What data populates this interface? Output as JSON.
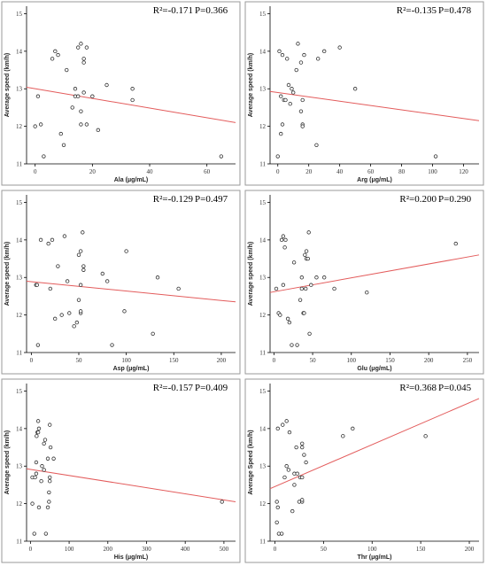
{
  "chart_data": [
    {
      "type": "scatter",
      "xlabel": "Ala (μg/mL)",
      "ylabel": "Average speed (km/h)",
      "stat_r2": "R²=-0.171",
      "stat_p": "P=0.366",
      "xlim": [
        -3,
        70
      ],
      "ylim": [
        11,
        15.2
      ],
      "xticks": [
        0,
        20,
        40,
        60
      ],
      "yticks": [
        11,
        12,
        13,
        14,
        15
      ],
      "points": [
        [
          0,
          12
        ],
        [
          1,
          12.8
        ],
        [
          2,
          12.05
        ],
        [
          3,
          11.2
        ],
        [
          6,
          13.8
        ],
        [
          7,
          14
        ],
        [
          8,
          13.9
        ],
        [
          9,
          11.8
        ],
        [
          10,
          11.5
        ],
        [
          11,
          13.5
        ],
        [
          13,
          12.5
        ],
        [
          14,
          12.8
        ],
        [
          14,
          13
        ],
        [
          15,
          14.1
        ],
        [
          15,
          12.8
        ],
        [
          16,
          12.05
        ],
        [
          16,
          12.4
        ],
        [
          16,
          14.2
        ],
        [
          17,
          13.7
        ],
        [
          17,
          12.9
        ],
        [
          17,
          13.8
        ],
        [
          18,
          14.1
        ],
        [
          18,
          12.05
        ],
        [
          20,
          12.8
        ],
        [
          22,
          11.9
        ],
        [
          25,
          13.1
        ],
        [
          34,
          12.7
        ],
        [
          34,
          13
        ],
        [
          65,
          11.2
        ]
      ],
      "fit": [
        [
          -3,
          13.04
        ],
        [
          70,
          12.1
        ]
      ],
      "grid": false
    },
    {
      "type": "scatter",
      "xlabel": "Arg (μg/mL)",
      "ylabel": "Average speed (km/h)",
      "stat_r2": "R²=-0.135",
      "stat_p": "P=0.478",
      "xlim": [
        -5,
        130
      ],
      "ylim": [
        11,
        15.2
      ],
      "xticks": [
        0,
        20,
        40,
        60,
        80,
        100,
        120
      ],
      "yticks": [
        11,
        12,
        13,
        14,
        15
      ],
      "points": [
        [
          0,
          11.2
        ],
        [
          1,
          14
        ],
        [
          2,
          11.8
        ],
        [
          2,
          12.8
        ],
        [
          3,
          13.9
        ],
        [
          3,
          12.05
        ],
        [
          4,
          12.7
        ],
        [
          5,
          12.7
        ],
        [
          6,
          13.8
        ],
        [
          7,
          13.1
        ],
        [
          8,
          12.6
        ],
        [
          9,
          13
        ],
        [
          10,
          12.9
        ],
        [
          12,
          13.5
        ],
        [
          13,
          14.2
        ],
        [
          15,
          13.7
        ],
        [
          15,
          12.4
        ],
        [
          16,
          12.05
        ],
        [
          16,
          12
        ],
        [
          16,
          12.7
        ],
        [
          17,
          13.9
        ],
        [
          25,
          11.5
        ],
        [
          26,
          13.8
        ],
        [
          30,
          14
        ],
        [
          40,
          14.1
        ],
        [
          50,
          13
        ],
        [
          102,
          11.2
        ]
      ],
      "fit": [
        [
          -5,
          12.93
        ],
        [
          130,
          12.15
        ]
      ],
      "grid": false
    },
    {
      "type": "scatter",
      "xlabel": "Asp (μg/mL)",
      "ylabel": "Average speed (km/h)",
      "stat_r2": "R²=-0.129",
      "stat_p": "P=0.497",
      "xlim": [
        -5,
        215
      ],
      "ylim": [
        11,
        15.2
      ],
      "xticks": [
        0,
        50,
        100,
        150,
        200
      ],
      "yticks": [
        11,
        12,
        13,
        14,
        15
      ],
      "points": [
        [
          5,
          12.8
        ],
        [
          6,
          12.8
        ],
        [
          7,
          11.2
        ],
        [
          10,
          14
        ],
        [
          18,
          13.9
        ],
        [
          20,
          12.7
        ],
        [
          22,
          14
        ],
        [
          25,
          11.9
        ],
        [
          28,
          13.3
        ],
        [
          32,
          12
        ],
        [
          35,
          14.1
        ],
        [
          38,
          12.9
        ],
        [
          40,
          12.05
        ],
        [
          45,
          11.7
        ],
        [
          48,
          11.8
        ],
        [
          50,
          13.6
        ],
        [
          50,
          12.4
        ],
        [
          52,
          12.05
        ],
        [
          52,
          12.1
        ],
        [
          52,
          13.7
        ],
        [
          52,
          12.8
        ],
        [
          54,
          14.2
        ],
        [
          55,
          13.3
        ],
        [
          55,
          13.2
        ],
        [
          75,
          13.1
        ],
        [
          80,
          12.9
        ],
        [
          85,
          11.2
        ],
        [
          98,
          12.1
        ],
        [
          100,
          13.7
        ],
        [
          128,
          11.5
        ],
        [
          133,
          13
        ],
        [
          155,
          12.7
        ]
      ],
      "fit": [
        [
          -5,
          12.9
        ],
        [
          215,
          12.35
        ]
      ],
      "grid": false
    },
    {
      "type": "scatter",
      "xlabel": "Glu (μg/mL)",
      "ylabel": "Average speed (km/h)",
      "stat_r2": "R²=0.200",
      "stat_p": "P=0.290",
      "xlim": [
        -5,
        265
      ],
      "ylim": [
        11,
        15.2
      ],
      "xticks": [
        0,
        50,
        100,
        150,
        200,
        250
      ],
      "yticks": [
        11,
        12,
        13,
        14,
        15
      ],
      "points": [
        [
          3,
          12.7
        ],
        [
          6,
          12.05
        ],
        [
          8,
          12
        ],
        [
          10,
          14
        ],
        [
          12,
          12.8
        ],
        [
          12,
          14.1
        ],
        [
          14,
          13.8
        ],
        [
          15,
          14
        ],
        [
          18,
          11.9
        ],
        [
          20,
          11.8
        ],
        [
          23,
          11.2
        ],
        [
          26,
          13.4
        ],
        [
          30,
          11.2
        ],
        [
          34,
          12.4
        ],
        [
          36,
          13
        ],
        [
          36,
          12.7
        ],
        [
          38,
          12.05
        ],
        [
          39,
          12.05
        ],
        [
          40,
          13.6
        ],
        [
          41,
          12.7
        ],
        [
          42,
          13.7
        ],
        [
          42,
          13.5
        ],
        [
          44,
          13.5
        ],
        [
          45,
          14.2
        ],
        [
          46,
          11.5
        ],
        [
          48,
          12.8
        ],
        [
          55,
          13
        ],
        [
          65,
          13
        ],
        [
          78,
          12.7
        ],
        [
          120,
          12.6
        ],
        [
          235,
          13.9
        ]
      ],
      "fit": [
        [
          -5,
          12.6
        ],
        [
          265,
          13.6
        ]
      ],
      "grid": false
    },
    {
      "type": "scatter",
      "xlabel": "His (μg/mL)",
      "ylabel": "Average speed (km/h)",
      "stat_r2": "R²=-0.157",
      "stat_p": "P=0.409",
      "xlim": [
        -10,
        530
      ],
      "ylim": [
        11,
        15.2
      ],
      "xticks": [
        0,
        100,
        200,
        300,
        400,
        500
      ],
      "yticks": [
        11,
        12,
        13,
        14,
        15
      ],
      "points": [
        [
          5,
          12.7
        ],
        [
          5,
          12
        ],
        [
          10,
          11.2
        ],
        [
          12,
          12.7
        ],
        [
          15,
          12.8
        ],
        [
          15,
          13.1
        ],
        [
          16,
          13.8
        ],
        [
          18,
          13.9
        ],
        [
          20,
          13.9
        ],
        [
          20,
          14.2
        ],
        [
          22,
          14
        ],
        [
          22,
          11.9
        ],
        [
          28,
          12.6
        ],
        [
          30,
          13
        ],
        [
          35,
          12.9
        ],
        [
          35,
          13.6
        ],
        [
          38,
          13.7
        ],
        [
          40,
          11.2
        ],
        [
          45,
          11.9
        ],
        [
          45,
          13.2
        ],
        [
          48,
          12.05
        ],
        [
          48,
          12.3
        ],
        [
          50,
          14.1
        ],
        [
          50,
          12.6
        ],
        [
          50,
          12.7
        ],
        [
          52,
          13.5
        ],
        [
          60,
          13.2
        ],
        [
          495,
          12.05
        ]
      ],
      "fit": [
        [
          -10,
          12.93
        ],
        [
          530,
          12.05
        ]
      ],
      "grid": false
    },
    {
      "type": "scatter",
      "xlabel": "Thr (μg/mL)",
      "ylabel": "Average Speed (km/h)",
      "stat_r2": "R²=0.368",
      "stat_p": "P=0.045",
      "xlim": [
        -5,
        210
      ],
      "ylim": [
        11,
        15.2
      ],
      "xticks": [
        0,
        50,
        100,
        150,
        200
      ],
      "yticks": [
        11,
        12,
        13,
        14,
        15
      ],
      "points": [
        [
          2,
          11.5
        ],
        [
          2,
          12.05
        ],
        [
          3,
          11.9
        ],
        [
          3,
          14
        ],
        [
          4,
          11.2
        ],
        [
          7,
          11.2
        ],
        [
          8,
          14.1
        ],
        [
          10,
          12.7
        ],
        [
          12,
          14.2
        ],
        [
          12,
          13
        ],
        [
          14,
          12.9
        ],
        [
          15,
          13.9
        ],
        [
          18,
          11.8
        ],
        [
          20,
          12.8
        ],
        [
          20,
          12.5
        ],
        [
          22,
          13.5
        ],
        [
          23,
          12.8
        ],
        [
          25,
          12.05
        ],
        [
          26,
          12.7
        ],
        [
          28,
          12.05
        ],
        [
          28,
          13.6
        ],
        [
          28,
          12.7
        ],
        [
          28,
          13.5
        ],
        [
          28,
          12.1
        ],
        [
          30,
          13.3
        ],
        [
          32,
          13.1
        ],
        [
          70,
          13.8
        ],
        [
          80,
          14
        ],
        [
          155,
          13.8
        ]
      ],
      "fit": [
        [
          -5,
          12.4
        ],
        [
          210,
          14.8
        ]
      ],
      "grid": false
    }
  ]
}
